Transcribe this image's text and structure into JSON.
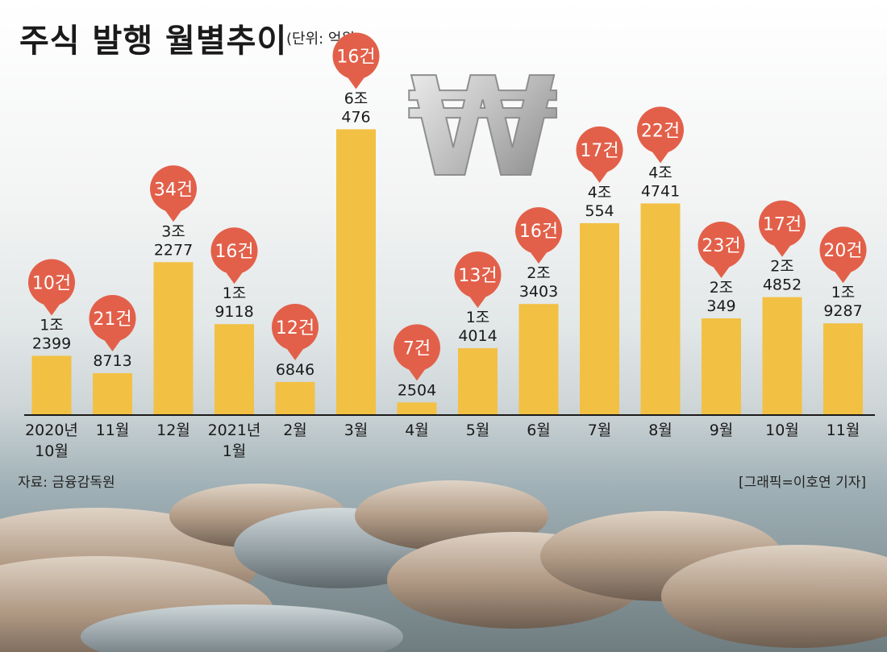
{
  "title": "주식 발행 월별추이",
  "unit_label": "(단위: 억원)",
  "source": "자료: 금융감독원",
  "credit": "[그래픽=이호연 기자]",
  "colors": {
    "bar": "#f2c043",
    "marker": "#e2604a",
    "marker_text": "#ffffff",
    "value_text": "#1a1a1a",
    "axis_line": "#1a1a1a"
  },
  "chart_data": {
    "type": "bar",
    "title": "주식 발행 월별추이",
    "unit": "억원",
    "categories": [
      [
        "2020년",
        "10월"
      ],
      [
        "11월"
      ],
      [
        "12월"
      ],
      [
        "2021년",
        "1월"
      ],
      [
        "2월"
      ],
      [
        "3월"
      ],
      [
        "4월"
      ],
      [
        "5월"
      ],
      [
        "6월"
      ],
      [
        "7월"
      ],
      [
        "8월"
      ],
      [
        "9월"
      ],
      [
        "10월"
      ],
      [
        "11월"
      ]
    ],
    "values": [
      12399,
      8713,
      32277,
      19118,
      6846,
      60476,
      2504,
      14014,
      23403,
      40554,
      44741,
      20349,
      24852,
      19287
    ],
    "value_labels": [
      [
        "1조",
        "2399"
      ],
      [
        "8713"
      ],
      [
        "3조",
        "2277"
      ],
      [
        "1조",
        "9118"
      ],
      [
        "6846"
      ],
      [
        "6조",
        "476"
      ],
      [
        "2504"
      ],
      [
        "1조",
        "4014"
      ],
      [
        "2조",
        "3403"
      ],
      [
        "4조",
        "554"
      ],
      [
        "4조",
        "4741"
      ],
      [
        "2조",
        "349"
      ],
      [
        "2조",
        "4852"
      ],
      [
        "1조",
        "9287"
      ]
    ],
    "counts": [
      "10건",
      "21건",
      "34건",
      "16건",
      "12건",
      "16건",
      "7건",
      "13건",
      "16건",
      "17건",
      "22건",
      "23건",
      "17건",
      "20건"
    ],
    "ylim": [
      0,
      65000
    ],
    "grid": false,
    "legend": "none"
  }
}
